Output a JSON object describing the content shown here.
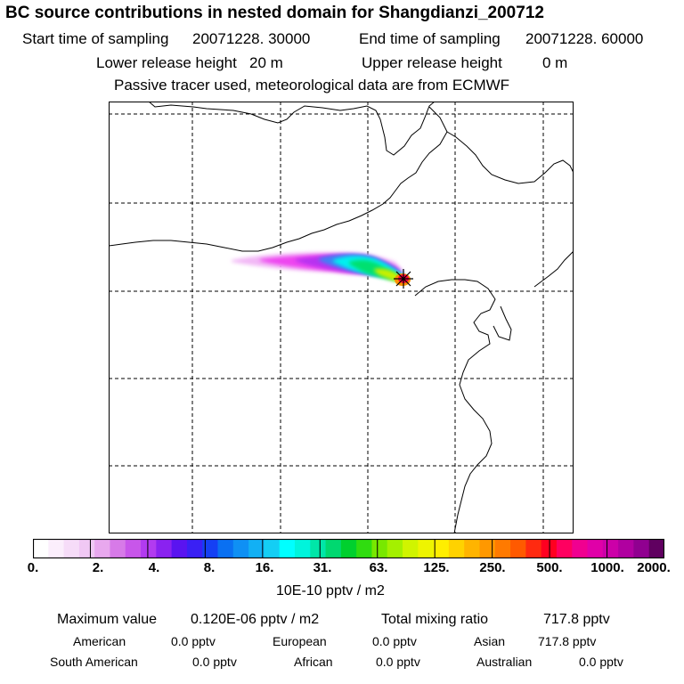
{
  "header": {
    "title": "BC  source contributions in nested domain for Shangdianzi_200712",
    "start_label": "Start time of sampling",
    "start_value": "20071228. 30000",
    "end_label": "End time of sampling",
    "end_value": "20071228. 60000",
    "lower_label": "Lower release height",
    "lower_value": "20 m",
    "upper_label": "Upper release height",
    "upper_value": "0 m",
    "note": "Passive tracer used, meteorological data are from ECMWF"
  },
  "colorbar": {
    "tick_labels": [
      "0.",
      "2.",
      "4.",
      "8.",
      "16.",
      "31.",
      "63.",
      "125.",
      "250.",
      "500.",
      "1000.",
      "2000."
    ],
    "colors": [
      "#ffffff",
      "#fbeefc",
      "#f6dcf8",
      "#f0c8f4",
      "#e8a8ee",
      "#d77ae8",
      "#c856ea",
      "#b23bf0",
      "#8a22f0",
      "#5a14f0",
      "#3a20f4",
      "#1540f4",
      "#0a70f2",
      "#0f90f4",
      "#12b0f4",
      "#14cef4",
      "#00ffff",
      "#00f4dc",
      "#00e6a8",
      "#00d870",
      "#00d02e",
      "#30dc10",
      "#78e800",
      "#a4f000",
      "#d0f400",
      "#eef400",
      "#ffee00",
      "#ffd200",
      "#ffb400",
      "#ff9800",
      "#ff7a00",
      "#ff5a00",
      "#ff2a10",
      "#ff0020",
      "#ff0060",
      "#f00090",
      "#e000a8",
      "#cc00a8",
      "#b000a0",
      "#900090",
      "#600060"
    ],
    "unit": "10E-10 pptv / m2"
  },
  "stats": {
    "max_label": "Maximum value",
    "max_value": "0.120E-06 pptv / m2",
    "total_label": "Total mixing ratio",
    "total_value": "717.8 pptv",
    "regions": [
      {
        "name": "American",
        "value": "0.0 pptv"
      },
      {
        "name": "European",
        "value": "0.0 pptv"
      },
      {
        "name": "Asian",
        "value": "717.8 pptv"
      },
      {
        "name": "South American",
        "value": "0.0 pptv"
      },
      {
        "name": "African",
        "value": "0.0 pptv"
      },
      {
        "name": "Australian",
        "value": "0.0 pptv"
      }
    ]
  },
  "map": {
    "plume_colors": [
      "#ee44f0",
      "#b830f0",
      "#4080f4",
      "#00f0f0",
      "#00e070",
      "#c8f000",
      "#ff9000",
      "#ff0040"
    ]
  }
}
